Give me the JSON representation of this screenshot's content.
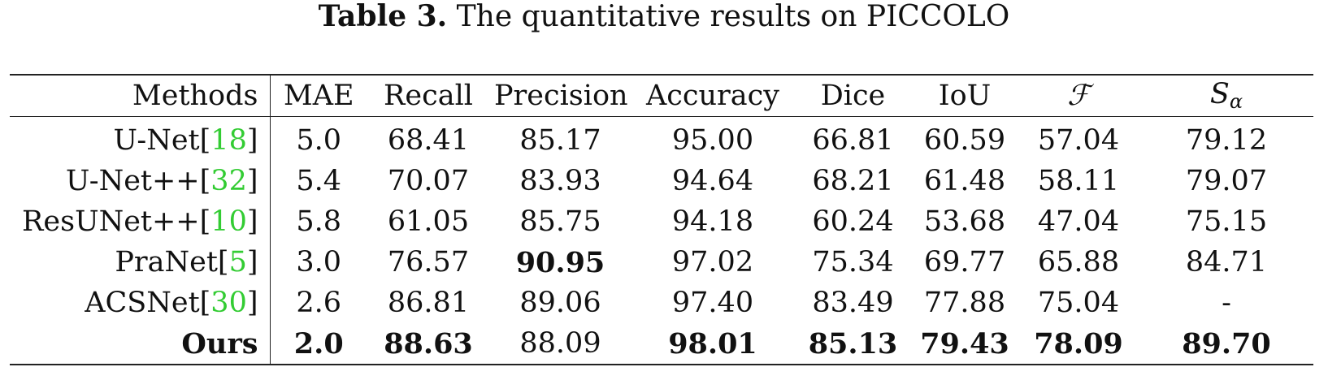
{
  "caption": {
    "label": "Table 3.",
    "text": "The quantitative results on PICCOLO"
  },
  "table": {
    "headers": {
      "method": "Methods",
      "mae": "MAE",
      "recall": "Recall",
      "precision": "Precision",
      "accuracy": "Accuracy",
      "dice": "Dice",
      "iou": "IoU",
      "f": "ℱ",
      "s_main": "S",
      "s_sub": "α"
    },
    "rows": [
      {
        "name": "U-Net",
        "cite": "18",
        "mae": "5.0",
        "recall": "68.41",
        "precision": "85.17",
        "accuracy": "95.00",
        "dice": "66.81",
        "iou": "60.59",
        "f": "57.04",
        "s": "79.12"
      },
      {
        "name": "U-Net++",
        "cite": "32",
        "mae": "5.4",
        "recall": "70.07",
        "precision": "83.93",
        "accuracy": "94.64",
        "dice": "68.21",
        "iou": "61.48",
        "f": "58.11",
        "s": "79.07"
      },
      {
        "name": "ResUNet++",
        "cite": "10",
        "mae": "5.8",
        "recall": "61.05",
        "precision": "85.75",
        "accuracy": "94.18",
        "dice": "60.24",
        "iou": "53.68",
        "f": "47.04",
        "s": "75.15"
      },
      {
        "name": "PraNet",
        "cite": "5",
        "mae": "3.0",
        "recall": "76.57",
        "precision": "90.95",
        "accuracy": "97.02",
        "dice": "75.34",
        "iou": "69.77",
        "f": "65.88",
        "s": "84.71"
      },
      {
        "name": "ACSNet",
        "cite": "30",
        "mae": "2.6",
        "recall": "86.81",
        "precision": "89.06",
        "accuracy": "97.40",
        "dice": "83.49",
        "iou": "77.88",
        "f": "75.04",
        "s": "-"
      },
      {
        "name": "Ours",
        "cite": "",
        "mae": "2.0",
        "recall": "88.63",
        "precision": "88.09",
        "accuracy": "98.01",
        "dice": "85.13",
        "iou": "79.43",
        "f": "78.09",
        "s": "89.70"
      }
    ]
  },
  "colors": {
    "citation": "#33cc33",
    "text": "#111111"
  }
}
